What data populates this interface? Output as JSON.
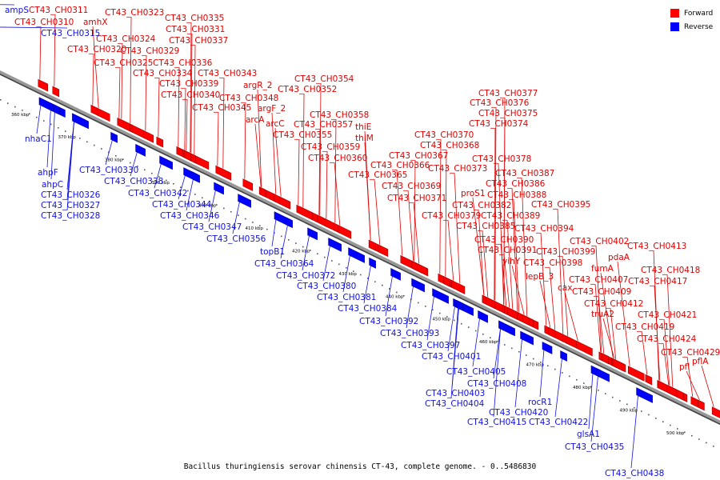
{
  "caption": "Bacillus thuringiensis serovar chinensis CT-43, complete genome. - 0..5486830",
  "legend": {
    "forward": {
      "label": "Forward",
      "color": "#ff0000"
    },
    "reverse": {
      "label": "Reverse",
      "color": "#0000ff"
    }
  },
  "colors": {
    "forward_text": "#e00000",
    "reverse_text": "#1010e0",
    "backbone": "#999999"
  },
  "ticks": [
    "360 kbp",
    "370 kbp",
    "380 kbp",
    "390 kbp",
    "400 kbp",
    "410 kbp",
    "420 kbp",
    "430 kbp",
    "440 kbp",
    "450 kbp",
    "460 kbp",
    "470 kbp",
    "480 kbp",
    "490 kbp",
    "500 kbp"
  ],
  "forward_genes": [
    "CT43_CH0311",
    "CT43_CH0310",
    "amhX",
    "CT43_CH0323",
    "CT43_CH0335",
    "CT43_CH0331",
    "CT43_CH0324",
    "CT43_CH0337",
    "CT43_CH0320",
    "CT43_CH0329",
    "CT43_CH0325",
    "CT43_CH0336",
    "CT43_CH0334",
    "CT43_CH0343",
    "CT43_CH0339",
    "argR_2",
    "CT43_CH0340",
    "CT43_CH0348",
    "CT43_CH0345",
    "argF_2",
    "arcA",
    "arcC",
    "CT43_CH0354",
    "CT43_CH0352",
    "CT43_CH0358",
    "CT43_CH0357",
    "thiE",
    "CT43_CH0355",
    "thiM",
    "CT43_CH0359",
    "CT43_CH0360",
    "CT43_CH0377",
    "CT43_CH0376",
    "CT43_CH0375",
    "CT43_CH0374",
    "CT43_CH0370",
    "CT43_CH0368",
    "CT43_CH0367",
    "CT43_CH0378",
    "CT43_CH0366",
    "CT43_CH0373",
    "CT43_CH0365",
    "CT43_CH0387",
    "CT43_CH0369",
    "CT43_CH0386",
    "CT43_CH0371",
    "proS1",
    "CT43_CH0388",
    "CT43_CH0382",
    "CT43_CH0395",
    "CT43_CH0379",
    "CT43_CH0389",
    "CT43_CH0385",
    "CT43_CH0394",
    "CT43_CH0390",
    "CT43_CH0402",
    "CT43_CH0413",
    "CT43_CH0391",
    "CT43_CH0399",
    "pdaA",
    "yihY",
    "CT43_CH0398",
    "fumA",
    "CT43_CH0418",
    "lepB_3",
    "CT43_CH0407",
    "CT43_CH0417",
    "cax",
    "CT43_CH0409",
    "CT43_CH0412",
    "truA2",
    "CT43_CH0421",
    "CT43_CH0419",
    "CT43_CH0424",
    "CT43_CH0429",
    "pflA",
    "pfl"
  ],
  "reverse_genes": [
    "ampS",
    "CT43_CH0315",
    "nhaC1",
    "ahpF",
    "ahpC",
    "CT43_CH0326",
    "CT43_CH0327",
    "CT43_CH0328",
    "CT43_CH0330",
    "CT43_CH0338",
    "CT43_CH0342",
    "CT43_CH0344",
    "CT43_CH0346",
    "CT43_CH0347",
    "CT43_CH0356",
    "topB1",
    "CT43_CH0364",
    "CT43_CH0372",
    "CT43_CH0380",
    "CT43_CH0381",
    "CT43_CH0384",
    "CT43_CH0392",
    "CT43_CH0393",
    "CT43_CH0397",
    "CT43_CH0401",
    "CT43_CH0405",
    "CT43_CH0408",
    "CT43_CH0403",
    "CT43_CH0404",
    "rocR1",
    "CT43_CH0420",
    "CT43_CH0415",
    "CT43_CH0422",
    "glsA1",
    "CT43_CH0435",
    "CT43_CH0438"
  ]
}
